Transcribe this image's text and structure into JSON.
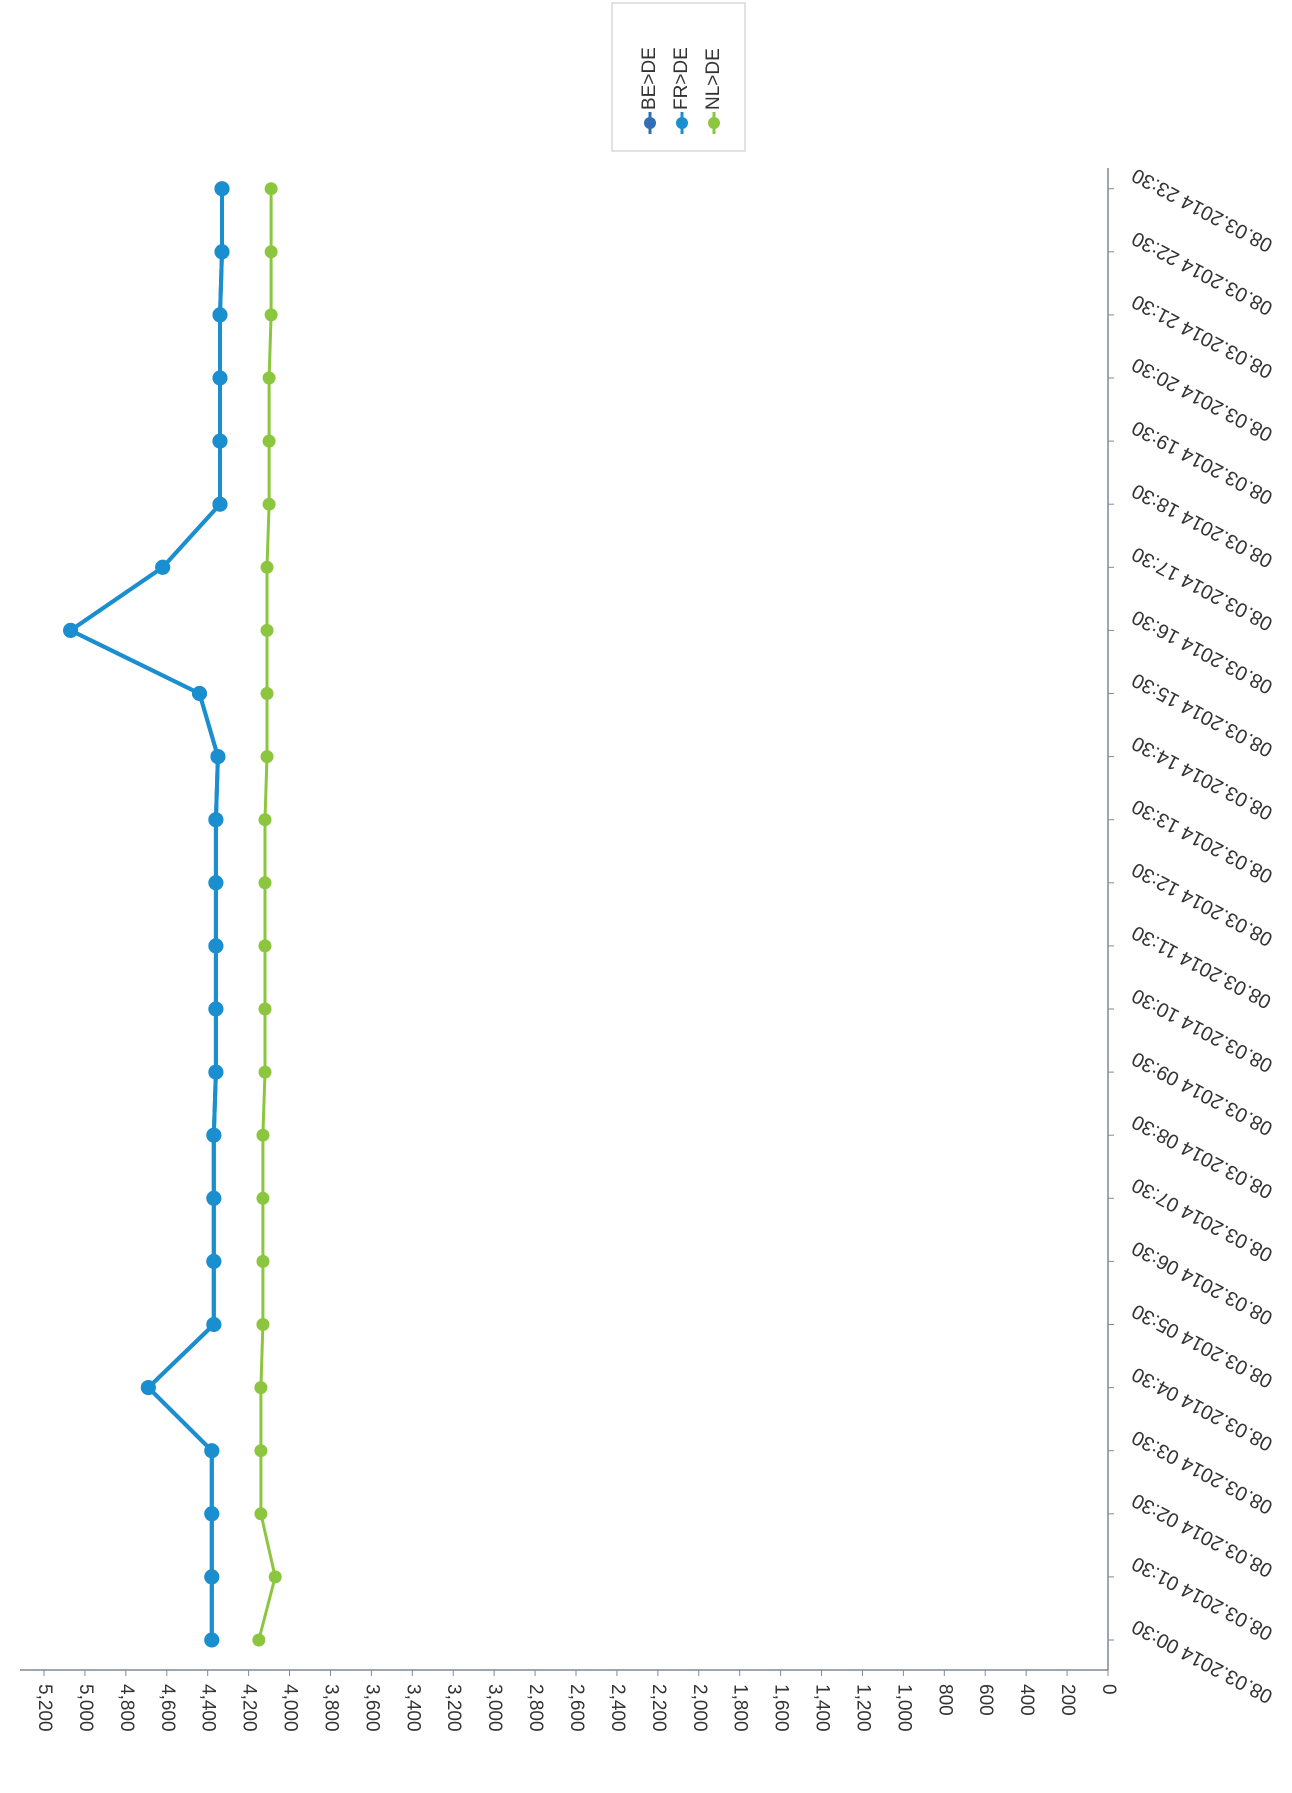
{
  "chart_data": {
    "type": "line",
    "title": "",
    "xlabel": "",
    "ylabel": "",
    "orientation": "rotated-90-clockwise",
    "x": [
      "08.03.2014 00:30",
      "08.03.2014 01:30",
      "08.03.2014 02:30",
      "08.03.2014 03:30",
      "08.03.2014 04:30",
      "08.03.2014 05:30",
      "08.03.2014 06:30",
      "08.03.2014 07:30",
      "08.03.2014 08:30",
      "08.03.2014 09:30",
      "08.03.2014 10:30",
      "08.03.2014 11:30",
      "08.03.2014 12:30",
      "08.03.2014 13:30",
      "08.03.2014 14:30",
      "08.03.2014 15:30",
      "08.03.2014 16:30",
      "08.03.2014 17:30",
      "08.03.2014 18:30",
      "08.03.2014 19:30",
      "08.03.2014 20:30",
      "08.03.2014 21:30",
      "08.03.2014 22:30",
      "08.03.2014 23:30"
    ],
    "y_ticks": [
      "0",
      "200",
      "400",
      "600",
      "800",
      "1,000",
      "1,200",
      "1,400",
      "1,600",
      "1,800",
      "2,000",
      "2,200",
      "2,400",
      "2,600",
      "2,800",
      "3,000",
      "3,200",
      "3,400",
      "3,600",
      "3,800",
      "4,000",
      "4,200",
      "4,400",
      "4,600",
      "4,800",
      "5,000",
      "5,200"
    ],
    "ylim": [
      0,
      5200
    ],
    "grid": false,
    "legend_position": "top",
    "series": [
      {
        "name": "BE>DE",
        "color": "#2f6fb4",
        "values": [
          4380,
          4380,
          4380,
          4380,
          4690,
          4370,
          4370,
          4370,
          4370,
          4360,
          4360,
          4360,
          4360,
          4360,
          4350,
          4440,
          5070,
          4620,
          4340,
          4340,
          4340,
          4340,
          4330,
          4330
        ]
      },
      {
        "name": "FR>DE",
        "color": "#1a8fd0",
        "values": [
          4380,
          4380,
          4380,
          4380,
          4690,
          4370,
          4370,
          4370,
          4370,
          4360,
          4360,
          4360,
          4360,
          4360,
          4350,
          4440,
          5070,
          4620,
          4340,
          4340,
          4340,
          4340,
          4330,
          4330
        ]
      },
      {
        "name": "NL>DE",
        "color": "#8cc63f",
        "values": [
          4150,
          4070,
          4140,
          4140,
          4140,
          4130,
          4130,
          4130,
          4130,
          4120,
          4120,
          4120,
          4120,
          4120,
          4110,
          4110,
          4110,
          4110,
          4100,
          4100,
          4100,
          4090,
          4090,
          4090
        ]
      }
    ]
  }
}
